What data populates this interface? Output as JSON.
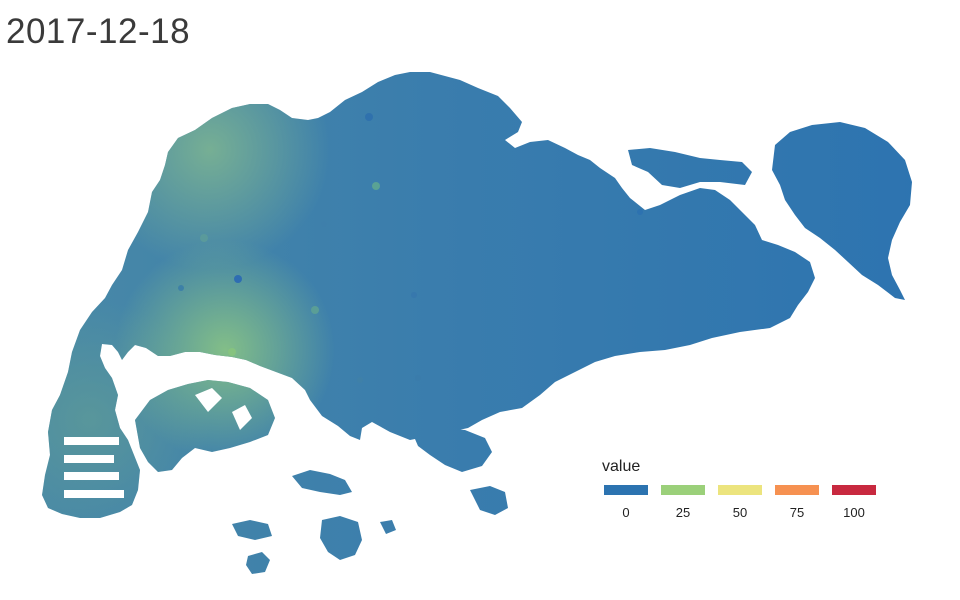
{
  "title": "2017-12-18",
  "legend": {
    "title": "value",
    "entries": [
      {
        "label": "0",
        "color": "#2c73b0"
      },
      {
        "label": "25",
        "color": "#9bd07a"
      },
      {
        "label": "50",
        "color": "#ece47e"
      },
      {
        "label": "75",
        "color": "#f69151"
      },
      {
        "label": "100",
        "color": "#c8293f"
      }
    ]
  },
  "map": {
    "fill_color_low": "#2c73b0",
    "fill_color_mid": "#6aa99a",
    "fill_color_high": "#9bd07a",
    "background": "#ffffff"
  }
}
